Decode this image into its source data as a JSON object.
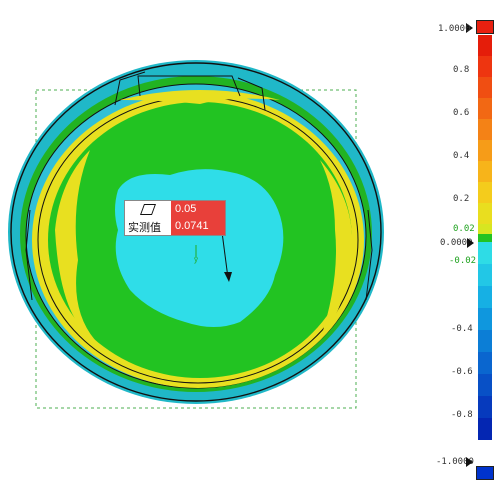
{
  "annotation": {
    "symbol": "flatness-symbol",
    "tolerance": "0.05",
    "measured_label": "实测值",
    "measured_value": "0.0741"
  },
  "colorbar": {
    "max_label": "1.0000",
    "min_label": "-1.0000",
    "mid_label": "0.0000",
    "upper_tol_label": "0.02",
    "lower_tol_label": "-0.02",
    "ticks": [
      "0.8",
      "0.6",
      "0.4",
      "0.2",
      "-0.4",
      "-0.6",
      "-0.8"
    ],
    "colors": {
      "over": "#e82010",
      "under": "#0033cc",
      "in_tolerance": "#22bb22",
      "annotation_red": "#e8403a"
    }
  },
  "axis_marker": "y"
}
